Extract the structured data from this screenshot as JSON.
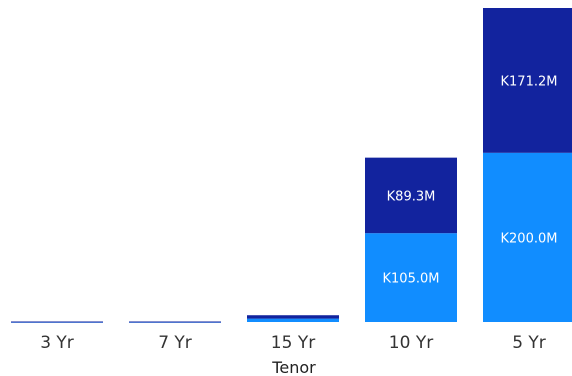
{
  "chart_data": {
    "type": "bar",
    "stacked": true,
    "categories": [
      "3 Yr",
      "7 Yr",
      "15 Yr",
      "10 Yr",
      "5 Yr"
    ],
    "series": [
      {
        "values": [
          0.3,
          0.3,
          4,
          105.0,
          200.0
        ],
        "labels": [
          "",
          "",
          "",
          "K105.0M",
          "K200.0M"
        ],
        "color": "#118dff"
      },
      {
        "values": [
          0.3,
          0.3,
          4,
          89.3,
          171.2
        ],
        "labels": [
          "",
          "",
          "",
          "K89.3M",
          "K171.2M"
        ],
        "color": "#12239e"
      }
    ],
    "xlabel": "Tenor",
    "ylabel": "",
    "ylim": [
      0,
      371.2
    ],
    "grid": false,
    "legend": "none"
  }
}
